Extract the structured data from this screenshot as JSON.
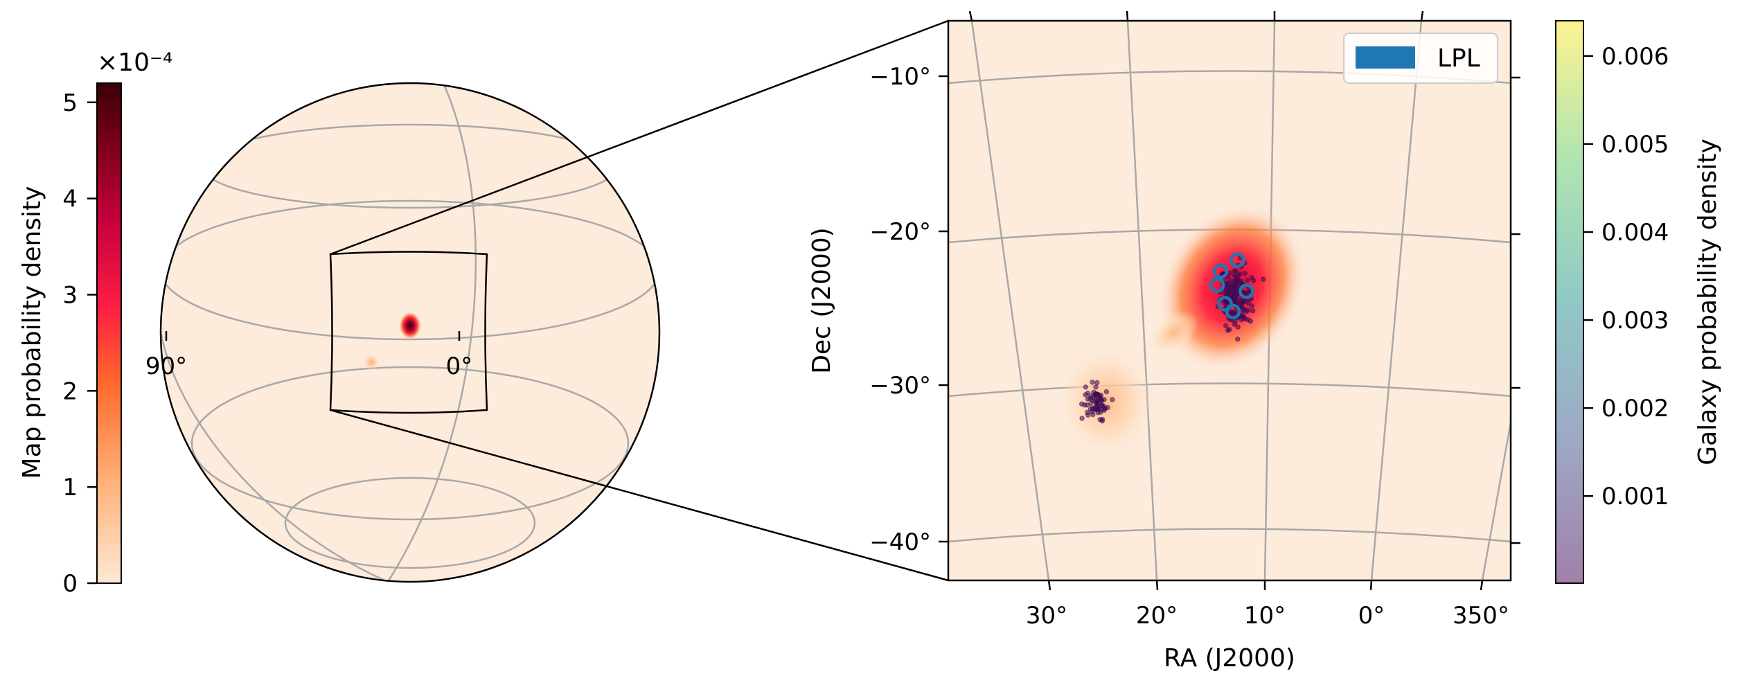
{
  "chart_data": [
    {
      "type": "heatmap",
      "projection": "globe",
      "title": "",
      "colorbar": {
        "label": "Map probability density",
        "scale_label": "×10⁻⁴",
        "ticks": [
          0,
          1,
          2,
          3,
          4,
          5
        ],
        "range": [
          0,
          5.2
        ],
        "colormap": "cylon",
        "colors": [
          "#fde8d4",
          "#ffb27a",
          "#ff6a2b",
          "#ff1f43",
          "#c7003e",
          "#7a0018",
          "#3a0008"
        ]
      },
      "longitude_labels": [
        "90°",
        "0°"
      ],
      "hotspots": [
        {
          "ra": 12.5,
          "dec": -24.5,
          "peak": 5.2
        },
        {
          "ra": 24.5,
          "dec": -31.5,
          "peak": 1.2
        }
      ]
    },
    {
      "type": "scatter",
      "title": "",
      "xlabel": "RA (J2000)",
      "ylabel": "Dec (J2000)",
      "xlim": [
        38,
        -12
      ],
      "ylim": [
        -42.5,
        -6.5
      ],
      "x_ticks": [
        "30°",
        "20°",
        "10°",
        "0°",
        "350°"
      ],
      "x_tick_values": [
        30,
        20,
        10,
        0,
        -10
      ],
      "y_ticks": [
        "−10°",
        "−20°",
        "−30°",
        "−40°"
      ],
      "y_tick_values": [
        -10,
        -20,
        -30,
        -40
      ],
      "grid": true,
      "legend": {
        "placement": "upper-right",
        "entries": [
          {
            "name": "LPL",
            "color": "#1f77b4"
          }
        ]
      },
      "colorbar": {
        "label": "Galaxy probability density",
        "ticks": [
          "0.001",
          "0.002",
          "0.003",
          "0.004",
          "0.005",
          "0.006"
        ],
        "tick_values": [
          0.001,
          0.002,
          0.003,
          0.004,
          0.005,
          0.006
        ],
        "range": [
          1e-05,
          0.0064
        ],
        "colormap": "viridis",
        "alpha": 0.5,
        "colors": [
          "#44015480",
          "#3b528b80",
          "#21918c80",
          "#5ec96280",
          "#fde72580"
        ]
      },
      "clusters": [
        {
          "ra": 12.5,
          "dec": -24.3,
          "sigma_ra": 1.2,
          "sigma_dec": 1.7,
          "count": 180,
          "density": 0.0008
        },
        {
          "ra": 24.8,
          "dec": -31.0,
          "sigma_ra": 0.8,
          "sigma_dec": 0.9,
          "count": 70,
          "density": 0.0006
        }
      ],
      "lpl_points": [
        {
          "ra": 13.8,
          "dec": -22.6
        },
        {
          "ra": 12.3,
          "dec": -21.9
        },
        {
          "ra": 11.5,
          "dec": -23.9
        },
        {
          "ra": 13.4,
          "dec": -24.7
        },
        {
          "ra": 12.7,
          "dec": -25.2
        },
        {
          "ra": 14.1,
          "dec": -23.5
        }
      ]
    }
  ]
}
